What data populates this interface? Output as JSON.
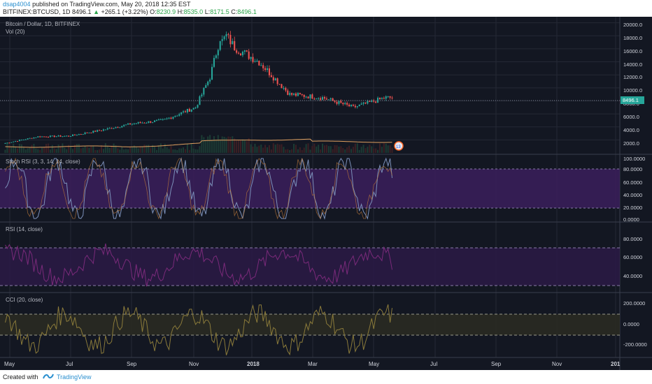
{
  "header": {
    "author": "dsap4004",
    "published": "published on TradingView.com, May 20, 2018 12:35 EST",
    "symbol": "BITFINEX:BTCUSD, 1D",
    "last": "8496.1",
    "change": "+265.1 (+3.22%)",
    "o_label": "O:",
    "o_value": "8230.9",
    "h_label": "H:",
    "h_value": "8535.0",
    "l_label": "L:",
    "l_value": "8171.5",
    "c_label": "C:",
    "c_value": "8496.1"
  },
  "colors": {
    "background": "#131722",
    "up": "#26a69a",
    "down": "#ef5350",
    "band": "#3b1f5c",
    "price_label": "#26a69a"
  },
  "main_pane": {
    "title": "Bitcoin / Dollar, 1D, BITFINEX",
    "subtitle": "Vol (20)",
    "y_ticks": [
      "20000.0",
      "18000.0",
      "16000.0",
      "14000.0",
      "12000.0",
      "10000.0",
      "8000.0",
      "6000.0",
      "4000.0",
      "2000.0"
    ],
    "current_price_label": "8496.1",
    "events_badge": "13"
  },
  "stoch_pane": {
    "title": "Stoch RSI (3, 3, 14, 14, close)",
    "y_ticks": [
      "100.0000",
      "80.0000",
      "60.0000",
      "40.0000",
      "20.0000",
      "0.0000"
    ]
  },
  "rsi_pane": {
    "title": "RSI (14, close)",
    "y_ticks": [
      "80.0000",
      "60.0000",
      "40.0000"
    ]
  },
  "cci_pane": {
    "title": "CCI (20, close)",
    "y_ticks": [
      "200.0000",
      "0.0000",
      "-200.0000"
    ]
  },
  "x_axis": {
    "labels": [
      "May",
      "Jul",
      "Sep",
      "Nov",
      "2018",
      "Mar",
      "May",
      "Jul",
      "Sep",
      "Nov",
      "201"
    ]
  },
  "footer": {
    "created": "Created with",
    "brand": "TradingView"
  },
  "chart_data": {
    "type": "line",
    "title": "Bitcoin / Dollar, 1D, BITFINEX",
    "x": [
      "2017-05",
      "2017-06",
      "2017-07",
      "2017-08",
      "2017-09",
      "2017-10",
      "2017-11",
      "2017-12",
      "2018-01",
      "2018-02",
      "2018-03",
      "2018-04",
      "2018-05"
    ],
    "series": [
      {
        "values": [
          1500,
          2500,
          2600,
          3500,
          4500,
          5000,
          7000,
          17000,
          14000,
          9000,
          8500,
          7000,
          8496
        ]
      }
    ],
    "ylim": [
      0,
      20500
    ],
    "current": 8496.1
  }
}
